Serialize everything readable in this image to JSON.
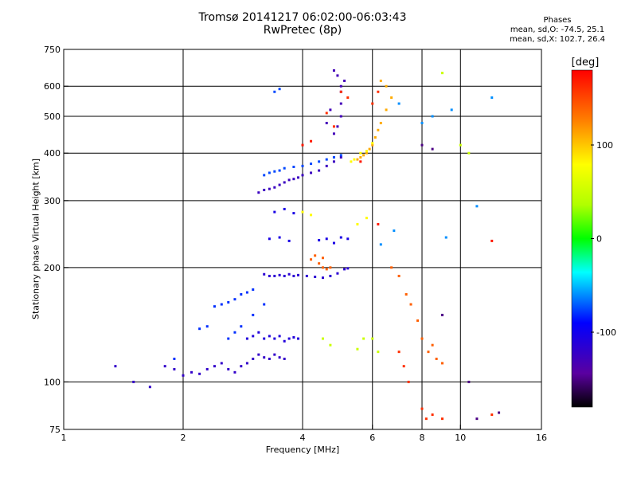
{
  "title_line1": "Tromsø 20141217 06:02:00-06:03:43",
  "title_line2": "RwPretec (8p)",
  "stats": {
    "heading": "Phases",
    "line1": "mean, sd,O: -74.5, 25.1",
    "line2": "mean, sd,X: 102.7, 26.4"
  },
  "chart_data": {
    "type": "scatter",
    "xlabel": "Frequency [MHz]",
    "ylabel": "Stationary phase Virtual Height [km]",
    "x_scale": "log",
    "y_scale": "log",
    "xlim": [
      1,
      16
    ],
    "ylim": [
      75,
      750
    ],
    "x_ticks": [
      1,
      2,
      4,
      6,
      8,
      10,
      16
    ],
    "x_tick_labels": [
      "1",
      "2",
      "4",
      "6",
      "8",
      "10",
      "16"
    ],
    "y_ticks": [
      75,
      100,
      200,
      300,
      400,
      500,
      600,
      750
    ],
    "y_tick_labels": [
      "75",
      "100",
      "200",
      "300",
      "400",
      "500",
      "600",
      "750"
    ],
    "grid": true,
    "colorbar": {
      "label": "[deg]",
      "range": [
        -180,
        180
      ],
      "ticks": [
        100,
        0,
        -100
      ],
      "tick_labels": [
        "100",
        "0",
        "-100"
      ]
    },
    "series": [
      {
        "phase": -120,
        "points": [
          [
            1.35,
            110
          ],
          [
            1.5,
            100
          ],
          [
            1.65,
            97
          ],
          [
            1.8,
            110
          ],
          [
            1.9,
            108
          ],
          [
            2.0,
            104
          ],
          [
            2.1,
            106
          ],
          [
            2.2,
            105
          ],
          [
            2.3,
            108
          ],
          [
            2.4,
            110
          ],
          [
            2.5,
            112
          ],
          [
            2.6,
            108
          ],
          [
            2.7,
            106
          ],
          [
            2.8,
            110
          ],
          [
            2.9,
            112
          ],
          [
            3.0,
            115
          ],
          [
            3.1,
            118
          ],
          [
            3.2,
            116
          ],
          [
            3.3,
            115
          ],
          [
            3.4,
            118
          ],
          [
            3.5,
            116
          ],
          [
            3.6,
            115
          ]
        ]
      },
      {
        "phase": -110,
        "points": [
          [
            2.9,
            130
          ],
          [
            3.0,
            132
          ],
          [
            3.1,
            135
          ],
          [
            3.2,
            130
          ],
          [
            3.3,
            132
          ],
          [
            3.4,
            130
          ],
          [
            3.5,
            132
          ],
          [
            3.6,
            128
          ],
          [
            3.7,
            130
          ],
          [
            3.8,
            131
          ],
          [
            3.9,
            130
          ]
        ]
      },
      {
        "phase": -115,
        "points": [
          [
            3.2,
            192
          ],
          [
            3.3,
            190
          ],
          [
            3.4,
            190
          ],
          [
            3.5,
            191
          ],
          [
            3.6,
            190
          ],
          [
            3.7,
            192
          ],
          [
            3.8,
            190
          ],
          [
            3.9,
            191
          ],
          [
            4.1,
            190
          ],
          [
            4.3,
            189
          ],
          [
            4.5,
            188
          ],
          [
            4.7,
            190
          ],
          [
            4.9,
            193
          ],
          [
            5.1,
            198
          ],
          [
            5.2,
            199
          ]
        ]
      },
      {
        "phase": -125,
        "points": [
          [
            3.1,
            315
          ],
          [
            3.2,
            320
          ],
          [
            3.3,
            322
          ],
          [
            3.4,
            325
          ],
          [
            3.5,
            330
          ],
          [
            3.6,
            335
          ],
          [
            3.7,
            340
          ],
          [
            3.8,
            342
          ],
          [
            3.9,
            345
          ],
          [
            4.0,
            350
          ],
          [
            4.2,
            355
          ],
          [
            4.4,
            360
          ],
          [
            4.6,
            370
          ],
          [
            4.8,
            380
          ],
          [
            5.0,
            390
          ]
        ]
      },
      {
        "phase": -130,
        "points": [
          [
            4.8,
            450
          ],
          [
            4.9,
            470
          ],
          [
            5.0,
            500
          ],
          [
            5.0,
            540
          ],
          [
            5.0,
            580
          ],
          [
            5.1,
            620
          ],
          [
            4.9,
            640
          ],
          [
            4.8,
            660
          ],
          [
            5.0,
            600
          ],
          [
            4.7,
            520
          ],
          [
            4.6,
            480
          ]
        ]
      },
      {
        "phase": -105,
        "points": [
          [
            3.3,
            238
          ],
          [
            3.5,
            240
          ],
          [
            3.7,
            235
          ],
          [
            4.4,
            236
          ],
          [
            4.6,
            238
          ],
          [
            4.8,
            232
          ],
          [
            5.0,
            240
          ],
          [
            5.2,
            238
          ],
          [
            3.4,
            280
          ],
          [
            3.6,
            285
          ],
          [
            3.8,
            278
          ]
        ]
      },
      {
        "phase": -80,
        "points": [
          [
            2.4,
            158
          ],
          [
            2.5,
            160
          ],
          [
            2.6,
            162
          ],
          [
            2.7,
            165
          ],
          [
            2.8,
            170
          ],
          [
            2.9,
            172
          ],
          [
            3.0,
            175
          ],
          [
            2.3,
            140
          ],
          [
            2.2,
            138
          ],
          [
            1.9,
            115
          ],
          [
            2.6,
            130
          ],
          [
            2.7,
            135
          ],
          [
            2.8,
            140
          ],
          [
            3.0,
            150
          ],
          [
            3.2,
            160
          ]
        ]
      },
      {
        "phase": -75,
        "points": [
          [
            3.2,
            350
          ],
          [
            3.3,
            355
          ],
          [
            3.4,
            358
          ],
          [
            3.5,
            360
          ],
          [
            3.6,
            365
          ],
          [
            3.8,
            368
          ],
          [
            4.0,
            370
          ],
          [
            4.2,
            375
          ],
          [
            4.4,
            380
          ],
          [
            4.6,
            385
          ],
          [
            4.8,
            390
          ],
          [
            5.0,
            395
          ],
          [
            3.4,
            580
          ],
          [
            3.5,
            590
          ]
        ]
      },
      {
        "phase": 110,
        "points": [
          [
            5.5,
            385
          ],
          [
            5.6,
            390
          ],
          [
            5.7,
            395
          ],
          [
            5.8,
            400
          ],
          [
            5.9,
            410
          ],
          [
            6.0,
            420
          ],
          [
            6.1,
            440
          ],
          [
            6.2,
            460
          ],
          [
            6.3,
            480
          ],
          [
            6.5,
            520
          ],
          [
            6.7,
            560
          ],
          [
            6.5,
            600
          ],
          [
            6.3,
            620
          ]
        ]
      },
      {
        "phase": 80,
        "points": [
          [
            5.3,
            380
          ],
          [
            5.4,
            385
          ],
          [
            5.6,
            400
          ],
          [
            5.8,
            405
          ],
          [
            6.0,
            425
          ],
          [
            4.0,
            280
          ],
          [
            4.2,
            275
          ],
          [
            5.5,
            260
          ],
          [
            5.8,
            270
          ]
        ]
      },
      {
        "phase": 140,
        "points": [
          [
            4.2,
            210
          ],
          [
            4.4,
            205
          ],
          [
            4.5,
            200
          ],
          [
            4.6,
            198
          ],
          [
            4.7,
            200
          ],
          [
            4.3,
            215
          ],
          [
            4.5,
            212
          ],
          [
            6.7,
            200
          ],
          [
            7.0,
            190
          ],
          [
            7.3,
            170
          ],
          [
            7.5,
            160
          ],
          [
            7.8,
            145
          ],
          [
            8.0,
            130
          ],
          [
            8.3,
            120
          ],
          [
            8.5,
            125
          ],
          [
            8.7,
            115
          ],
          [
            9.0,
            112
          ]
        ]
      },
      {
        "phase": 160,
        "points": [
          [
            5.0,
            580
          ],
          [
            5.2,
            560
          ],
          [
            4.6,
            510
          ],
          [
            4.8,
            470
          ],
          [
            6.0,
            540
          ],
          [
            6.2,
            580
          ],
          [
            7.0,
            120
          ],
          [
            7.2,
            110
          ],
          [
            7.4,
            100
          ],
          [
            8.0,
            85
          ],
          [
            8.2,
            80
          ],
          [
            8.5,
            82
          ],
          [
            9.0,
            80
          ],
          [
            12.0,
            82
          ]
        ]
      },
      {
        "phase": 170,
        "points": [
          [
            12.0,
            235
          ],
          [
            4.0,
            420
          ],
          [
            4.2,
            430
          ],
          [
            5.6,
            380
          ],
          [
            6.2,
            260
          ]
        ]
      },
      {
        "phase": 50,
        "points": [
          [
            5.5,
            122
          ],
          [
            5.7,
            130
          ],
          [
            6.0,
            130
          ],
          [
            6.2,
            120
          ],
          [
            4.5,
            130
          ],
          [
            4.7,
            125
          ],
          [
            9.0,
            650
          ],
          [
            10.0,
            420
          ],
          [
            10.5,
            400
          ]
        ]
      },
      {
        "phase": -60,
        "points": [
          [
            7.0,
            540
          ],
          [
            8.0,
            480
          ],
          [
            8.5,
            500
          ],
          [
            9.5,
            520
          ],
          [
            11.0,
            290
          ],
          [
            12.0,
            560
          ],
          [
            9.2,
            240
          ],
          [
            6.8,
            250
          ],
          [
            6.3,
            230
          ]
        ]
      },
      {
        "phase": -150,
        "points": [
          [
            10.5,
            100
          ],
          [
            11.0,
            80
          ],
          [
            12.5,
            83
          ],
          [
            9.0,
            150
          ],
          [
            8.0,
            420
          ],
          [
            8.5,
            410
          ]
        ]
      }
    ]
  }
}
